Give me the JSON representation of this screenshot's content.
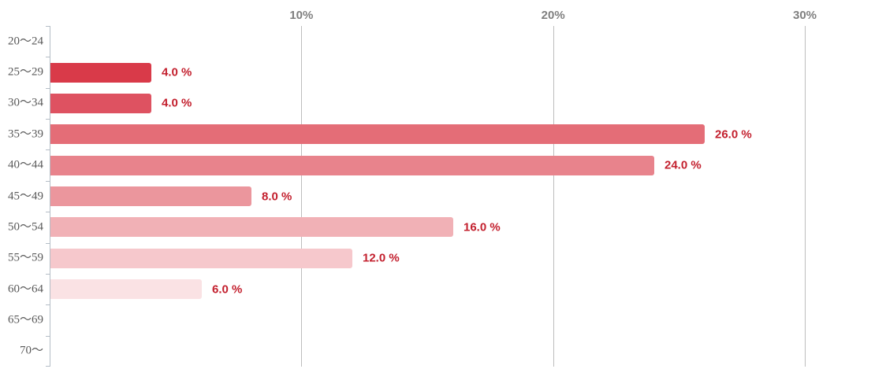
{
  "chart_data": {
    "type": "bar",
    "orientation": "horizontal",
    "title": "",
    "xlabel": "",
    "ylabel": "",
    "xlim": [
      0,
      30
    ],
    "x_ticks": [
      {
        "label": "10%",
        "percent": 10
      },
      {
        "label": "20%",
        "percent": 20
      },
      {
        "label": "30%",
        "percent": 30
      }
    ],
    "grid": true,
    "legend": false,
    "categories": [
      "20〜24",
      "25〜29",
      "30〜34",
      "35〜39",
      "40〜44",
      "45〜49",
      "50〜54",
      "55〜59",
      "60〜64",
      "65〜69",
      "70〜"
    ],
    "values": [
      0,
      4.0,
      4.0,
      26.0,
      24.0,
      8.0,
      16.0,
      12.0,
      6.0,
      0,
      0
    ],
    "value_labels": [
      "",
      "4.0 %",
      "4.0 %",
      "26.0 %",
      "24.0 %",
      "8.0 %",
      "16.0 %",
      "12.0 %",
      "6.0 %",
      "",
      ""
    ],
    "bar_colors": [
      "",
      "#d93a49",
      "#de5261",
      "#e46d77",
      "#e8838c",
      "#eb969d",
      "#f1b1b6",
      "#f6c8cc",
      "#fae2e4",
      "",
      ""
    ],
    "colors": {
      "value_label": "#c3202e",
      "x_tick_label": "#7f7f7f",
      "category_label": "#595959",
      "axis_line": "#b4bdc6",
      "gridline": "#bdbdbd",
      "background": "#ffffff"
    }
  }
}
